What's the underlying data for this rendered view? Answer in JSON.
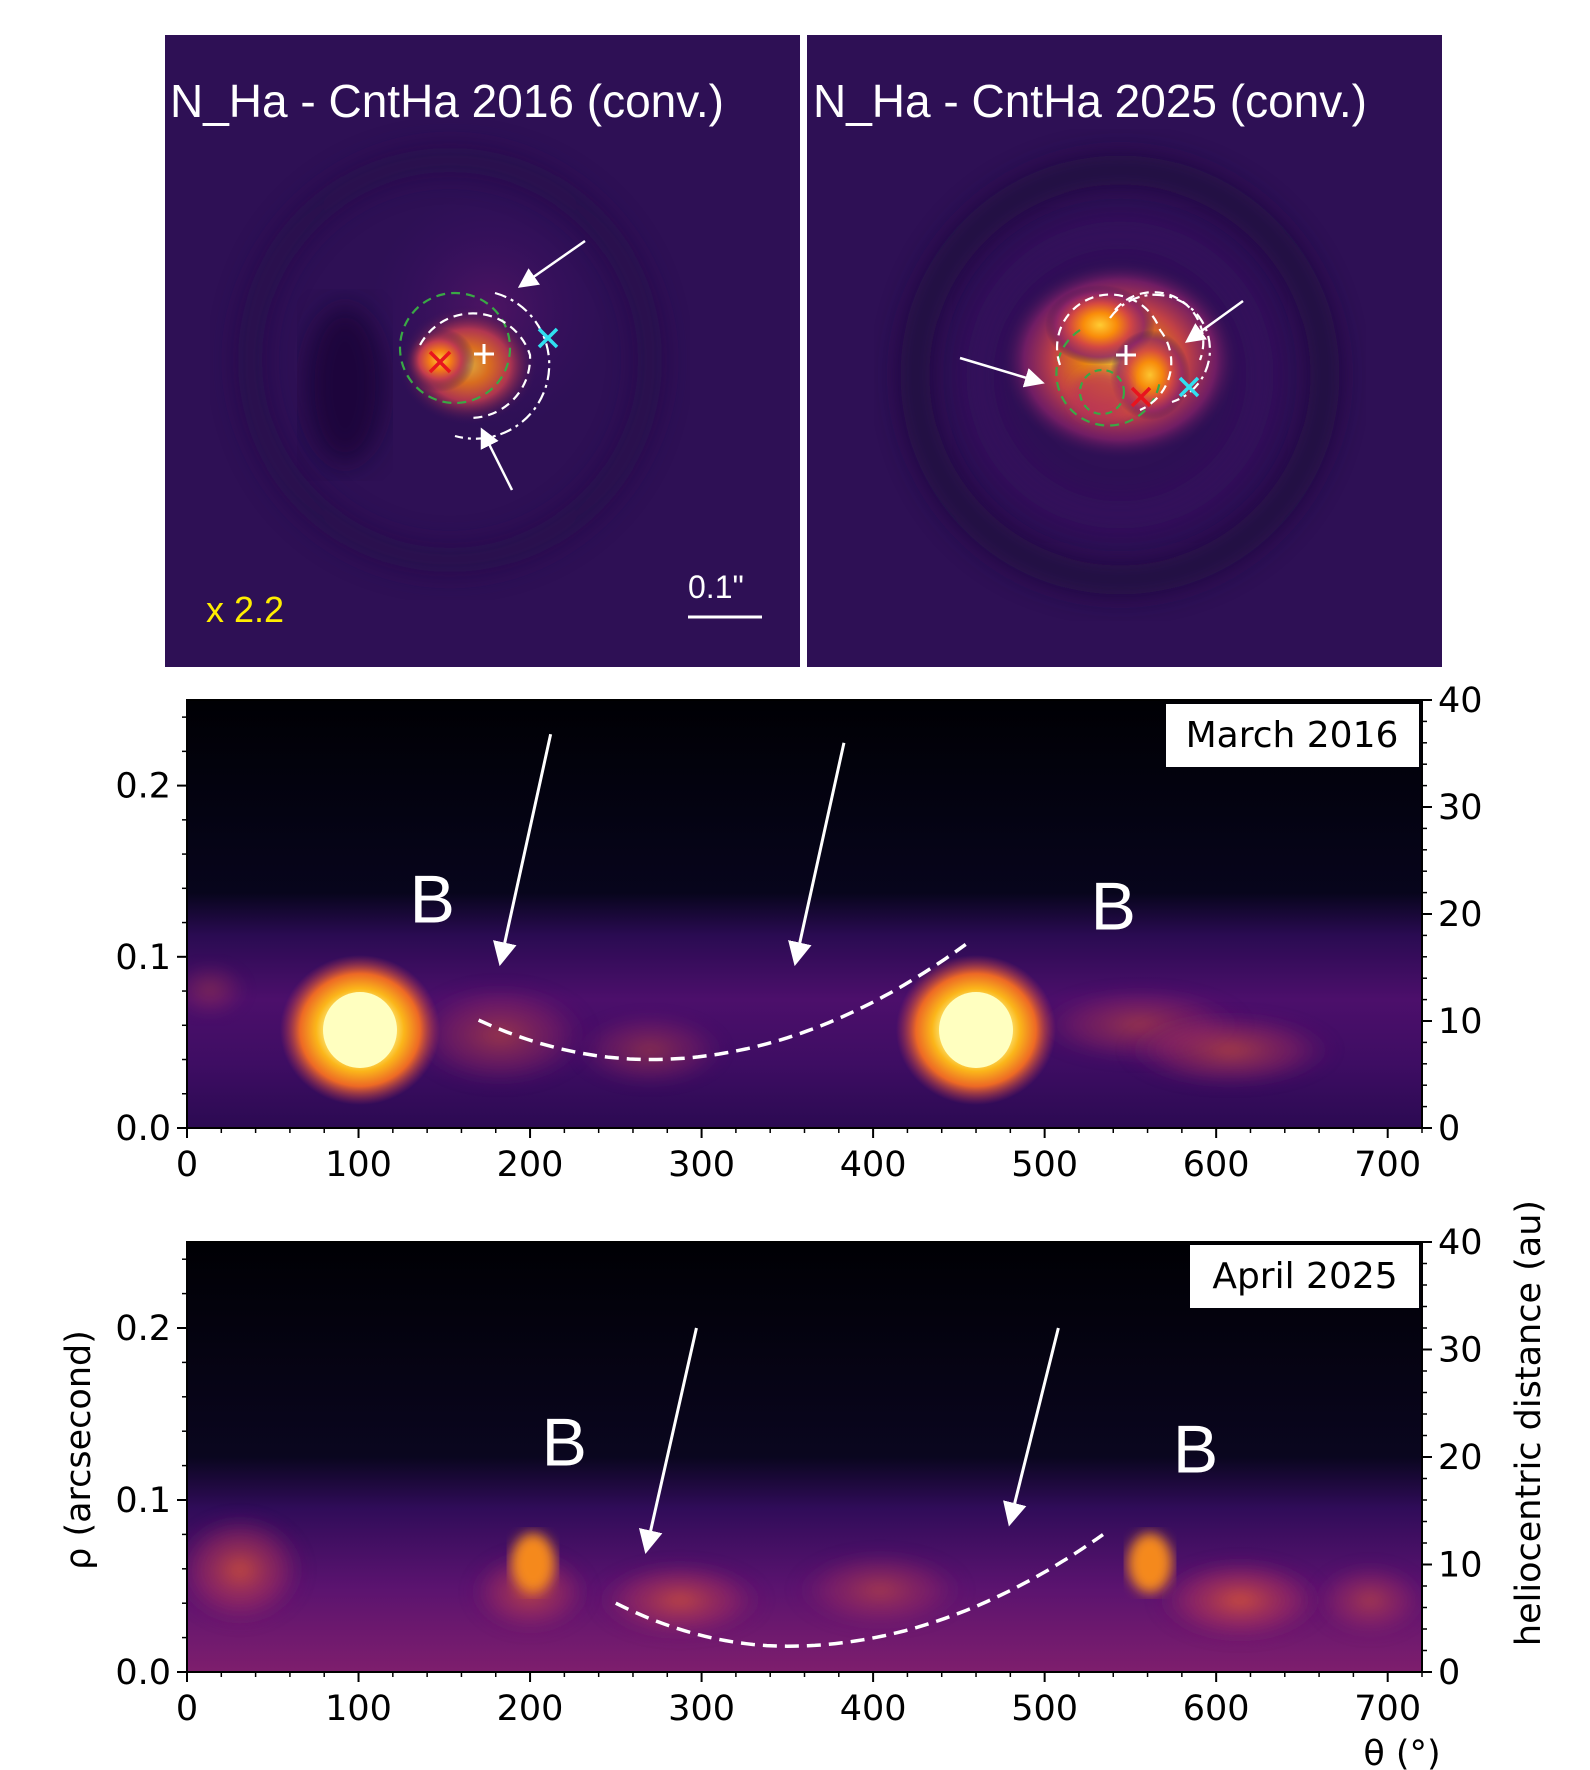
{
  "top_panels": [
    {
      "title": "N_Ha - CntHa 2016 (conv.)",
      "scale_factor": "x 2.2",
      "scale_bar": "0.1\""
    },
    {
      "title": "N_Ha - CntHa 2025 (conv.)"
    }
  ],
  "colors": {
    "bg_image": "#2e1055",
    "arrow": "#ffffff",
    "marker_red": "#e8141e",
    "marker_cyan": "#30e0f0",
    "green_circle": "#3aa845",
    "yellow_text": "#ffee00"
  },
  "chart_data": [
    {
      "type": "heatmap",
      "colormap": "inferno",
      "date_label": "March 2016",
      "xlim": [
        0,
        720
      ],
      "ylim": [
        0,
        0.25
      ],
      "y2lim": [
        0,
        40
      ],
      "xticks": [
        0,
        100,
        200,
        300,
        400,
        500,
        600,
        700
      ],
      "yticks": [
        0.0,
        0.1,
        0.2
      ],
      "y2ticks": [
        0,
        10,
        20,
        30,
        40
      ],
      "xtick_labels": [
        "0",
        "100",
        "200",
        "300",
        "400",
        "500",
        "600",
        "700"
      ],
      "ytick_labels": [
        "0.0",
        "0.1",
        "0.2"
      ],
      "y2tick_labels": [
        "0",
        "10",
        "20",
        "30",
        "40"
      ],
      "labels": [
        {
          "text": "B",
          "x": 143,
          "y": 0.12
        },
        {
          "text": "B",
          "x": 540,
          "y": 0.116
        }
      ],
      "arrows": [
        {
          "from": [
            212,
            0.23
          ],
          "to": [
            183,
            0.098
          ]
        },
        {
          "from": [
            383,
            0.225
          ],
          "to": [
            355,
            0.098
          ]
        }
      ],
      "dashed_curve": {
        "start": [
          170,
          0.063
        ],
        "min": [
          270,
          0.04
        ],
        "end": [
          455,
          0.108
        ]
      }
    },
    {
      "type": "heatmap",
      "colormap": "inferno",
      "date_label": "April 2025",
      "xlim": [
        0,
        720
      ],
      "ylim": [
        0,
        0.25
      ],
      "y2lim": [
        0,
        40
      ],
      "xticks": [
        0,
        100,
        200,
        300,
        400,
        500,
        600,
        700
      ],
      "yticks": [
        0.0,
        0.1,
        0.2
      ],
      "y2ticks": [
        0,
        10,
        20,
        30,
        40
      ],
      "xtick_labels": [
        "0",
        "100",
        "200",
        "300",
        "400",
        "500",
        "600",
        "700"
      ],
      "ytick_labels": [
        "0.0",
        "0.1",
        "0.2"
      ],
      "y2tick_labels": [
        "0",
        "10",
        "20",
        "30",
        "40"
      ],
      "xlabel": "θ (°)",
      "ylabel": "ρ (arcsecond)",
      "y2label": "heliocentric distance (au)",
      "labels": [
        {
          "text": "B",
          "x": 220,
          "y": 0.12
        },
        {
          "text": "B",
          "x": 588,
          "y": 0.116
        }
      ],
      "arrows": [
        {
          "from": [
            297,
            0.2
          ],
          "to": [
            268,
            0.072
          ]
        },
        {
          "from": [
            508,
            0.2
          ],
          "to": [
            480,
            0.088
          ]
        }
      ],
      "dashed_curve": {
        "start": [
          250,
          0.04
        ],
        "min": [
          350,
          0.015
        ],
        "end": [
          537,
          0.082
        ]
      }
    }
  ]
}
